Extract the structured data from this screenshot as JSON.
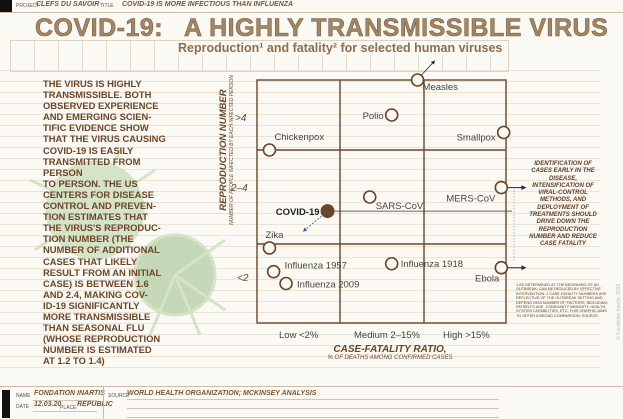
{
  "header": {
    "project_label": "PROJECT",
    "project_value": "CLEFS DU SAVOIR",
    "title_label": "TITLE",
    "title_value": "COVID-19 IS MORE INFECTIOUS THAN INFLUENZA"
  },
  "headline": {
    "part1": "COVID-19:",
    "part2": "A HIGHLY TRANSMISSIBLE VIRUS",
    "subtitle": "Reproduction¹ and fatality² for selected human viruses"
  },
  "body_text_lines": [
    "THE VIRUS IS HIGHLY",
    "TRANSMISSIBLE. BOTH",
    "OBSERVED EXPERIENCE",
    "AND EMERGING SCIEN-",
    "TIFIC EVIDENCE SHOW",
    "THAT THE VIRUS CAUSING",
    "COVID-19 IS EASILY",
    "TRANSMITTED FROM",
    "PERSON",
    "TO PERSON. THE US",
    "CENTERS FOR DISEASE",
    "CONTROL AND PREVEN-",
    "TION ESTIMATES THAT",
    "THE VIRUS'S REPRODUC-",
    "TION NUMBER (THE",
    "NUMBER OF ADDITIONAL",
    "CASES THAT LIKELY",
    "RESULT FROM AN INITIAL",
    "CASE) IS BETWEEN 1.6",
    "AND 2.4, MAKING COV-",
    "ID-19 SIGNIFICANTLY",
    "MORE TRANSMISSIBLE",
    "THAN SEASONAL FLU",
    "(WHOSE REPRODUCTION",
    "NUMBER IS ESTIMATED",
    "AT 1.2 TO 1.4)"
  ],
  "chart_data": {
    "type": "scatter",
    "xlabel": "CASE-FATALITY RATIO,",
    "xlabel_sub": "% OF DEATHS AMONG CONFIRMED CASES",
    "ylabel": "REPRODUCTION NUMBER",
    "ylabel_sub": "NUMBER OF PEOPLE INFECTED BY EACH INFECTED PERSON",
    "x_categories": [
      "Low <2%",
      "Medium 2–15%",
      "High >15%"
    ],
    "y_categories": [
      "<2",
      "2–4",
      ">4"
    ],
    "grid": true,
    "highlight_color": "#6b4527",
    "points": [
      {
        "name": "Measles",
        "x": 14,
        "y": 20
      },
      {
        "name": "Polio",
        "x": 10,
        "y": 12
      },
      {
        "name": "Smallpox",
        "x": 49,
        "y": 8
      },
      {
        "name": "Chickenpox",
        "x": 0.3,
        "y": 4
      },
      {
        "name": "MERS-CoV",
        "x": 48,
        "y": 3.2
      },
      {
        "name": "SARS-CoV",
        "x": 6.6,
        "y": 3
      },
      {
        "name": "COVID-19",
        "x": 1.7,
        "y": 2.7,
        "highlight": true
      },
      {
        "name": "Zika",
        "x": 0.3,
        "y": 1.9
      },
      {
        "name": "Influenza 1957",
        "x": 0.4,
        "y": 1.3
      },
      {
        "name": "Influenza 2009",
        "x": 0.7,
        "y": 1.0
      },
      {
        "name": "Influenza 1918",
        "x": 10,
        "y": 1.5
      },
      {
        "name": "Ebola",
        "x": 48,
        "y": 1.4
      }
    ]
  },
  "side_note": "IDENTIFICATION OF CASES EARLY IN THE DISEASE, INTENSIFICATION OF VIRAL-CONTROL METHODS, AND DEPLOYMENT OF TREATMENTS SHOULD DRIVE DOWN THE REPRODUCTION NUMBER AND REDUCE CASE FATALITY",
  "footnote": "1 AS DETERMINED AT THE BEGINNING OF AN OUTBREAK; CAN BE REDUCED BY EFFECTIVE INTERVENTION. 2 CASE-FATALITY NUMBERS ARE REFLECTIVE OF THE OUTBREAK SETTING AND DEPEND ON A NUMBER OF FACTORS, INCLUDING PATIENT'S AGE, COMMUNITY IMMUNITY, HEALTH-SYSTEM CAPABILITIES, ETC. THIS GRAPHIC AIMS TO OFFER A BROAD COMPARISON. SOURCE:",
  "copyright": "© Fondation Inartis, 2019",
  "footer": {
    "name_label": "NAME",
    "name_value": "FONDATION INARTIS",
    "date_label": "DATE",
    "date_value": "12.03.20",
    "place_label": "PLACE",
    "place_value": "REPUBLIC",
    "source_label": "SOURCE",
    "source_value": "WORLD HEALTH ORGANIZATION; MCKINSEY ANALYSIS"
  }
}
